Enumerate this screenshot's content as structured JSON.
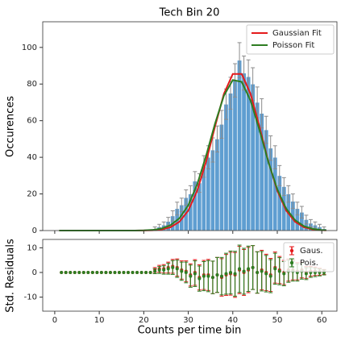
{
  "chart_data": [
    {
      "type": "histogram",
      "title": "Tech Bin 20",
      "ylabel": "Occurences",
      "bins": [
        1,
        2,
        3,
        4,
        5,
        6,
        7,
        8,
        9,
        10,
        11,
        12,
        13,
        14,
        15,
        16,
        17,
        18,
        19,
        20,
        21,
        22,
        23,
        24,
        25,
        26,
        27,
        28,
        29,
        30,
        31,
        32,
        33,
        34,
        35,
        36,
        37,
        38,
        39,
        40,
        41,
        42,
        43,
        44,
        45,
        46,
        47,
        48,
        49,
        50,
        51,
        52,
        53,
        54,
        55,
        56,
        57,
        58,
        59,
        60,
        61
      ],
      "values": [
        0,
        0,
        0,
        0,
        0,
        0,
        0,
        0,
        0,
        0,
        0,
        0,
        0,
        0,
        0,
        0,
        0,
        0,
        0,
        0,
        0,
        1,
        2,
        3,
        5,
        8,
        12,
        14,
        18,
        20,
        27,
        26,
        35,
        40,
        44,
        50,
        58,
        69,
        75,
        82,
        93,
        86,
        84,
        80,
        70,
        64,
        55,
        45,
        40,
        30,
        24,
        20,
        16,
        12,
        10,
        6,
        4,
        3,
        2,
        1
      ],
      "errors": [
        0,
        0,
        0,
        0,
        0,
        0,
        0,
        0,
        0,
        0,
        0,
        0,
        0,
        0,
        0,
        0,
        0,
        0,
        0,
        0,
        0,
        1,
        1.4,
        1.7,
        2.2,
        2.8,
        3.5,
        3.7,
        4.2,
        4.5,
        5.2,
        5.1,
        5.9,
        6.3,
        6.6,
        7.1,
        7.6,
        8.3,
        8.7,
        9.1,
        9.6,
        9.3,
        9.2,
        8.9,
        8.4,
        8,
        7.4,
        6.7,
        6.3,
        5.5,
        4.9,
        4.5,
        4,
        3.5,
        3.2,
        2.4,
        2,
        1.7,
        1.4,
        1
      ],
      "color": "#5f9ed1",
      "error_color": "#8c8c8c",
      "xlim": [
        -2.7,
        63.4
      ],
      "ylim": [
        0,
        114
      ],
      "xticks": [
        0,
        10,
        20,
        30,
        40,
        50,
        60
      ],
      "yticks": [
        0,
        20,
        40,
        60,
        80,
        100
      ],
      "legend": "upper right",
      "series": [
        {
          "name": "Gaussian Fit",
          "color": "#e41a1c",
          "x": [
            1,
            10,
            18,
            20,
            22,
            24,
            26,
            28,
            30,
            32,
            34,
            36,
            38,
            40,
            42,
            44,
            46,
            48,
            50,
            52,
            54,
            56,
            58,
            60,
            61
          ],
          "values": [
            0,
            0,
            0,
            0.05,
            0.18,
            0.61,
            1.8,
            4.8,
            10.9,
            21.7,
            37.6,
            56.7,
            74.6,
            85.5,
            85.5,
            74.6,
            56.7,
            37.6,
            21.7,
            10.9,
            4.8,
            1.8,
            0.6,
            0.2,
            0.1
          ]
        },
        {
          "name": "Poisson Fit",
          "color": "#2e7d22",
          "x": [
            1,
            10,
            18,
            20,
            22,
            24,
            26,
            28,
            30,
            32,
            34,
            36,
            38,
            40,
            42,
            44,
            46,
            48,
            50,
            52,
            54,
            56,
            58,
            60,
            61
          ],
          "values": [
            0,
            0,
            0.01,
            0.11,
            0.36,
            1.08,
            2.9,
            6.7,
            13.8,
            25.2,
            40.8,
            58.3,
            73.6,
            82.2,
            81.2,
            70.9,
            54.8,
            37.4,
            22.6,
            12,
            5.7,
            2.4,
            0.9,
            0.3,
            0.2
          ]
        }
      ]
    },
    {
      "type": "residuals",
      "ylabel": "Std. Residuals",
      "xlabel": "Counts per time bin",
      "xlim": [
        -2.7,
        63.4
      ],
      "ylim": [
        -15.7,
        13.4
      ],
      "xticks": [
        0,
        10,
        20,
        30,
        40,
        50,
        60
      ],
      "yticks": [
        -10,
        0,
        10
      ],
      "legend": "upper right",
      "series": [
        {
          "name": "Gaus.",
          "color": "#e41a1c",
          "values": [
            0,
            0,
            0,
            0,
            0,
            0,
            0,
            0,
            0,
            0,
            0,
            0,
            0,
            0,
            0,
            0,
            0,
            0,
            0,
            0,
            0,
            1,
            1.5,
            1.5,
            2,
            2.5,
            2,
            1,
            0.5,
            -1,
            0,
            -2,
            -1,
            -1,
            -2,
            -1,
            -2,
            -1,
            -0.5,
            -1,
            1,
            0,
            1,
            2,
            0,
            1,
            0,
            -1,
            2,
            1,
            0,
            1,
            1,
            0.5,
            1,
            0,
            0.5,
            0.5,
            0.3,
            0.2
          ],
          "errors": [
            0,
            0,
            0,
            0,
            0,
            0,
            0,
            0,
            0,
            0,
            0,
            0,
            0,
            0,
            0,
            0,
            0,
            0,
            0,
            0,
            0,
            1,
            1.4,
            1.7,
            2.2,
            2.8,
            3.5,
            3.7,
            4.2,
            4.5,
            5.2,
            5.1,
            5.9,
            6.3,
            6.6,
            7.1,
            7.6,
            8.3,
            8.7,
            9.1,
            9.6,
            9.3,
            9.2,
            8.9,
            8.4,
            8,
            7.4,
            6.7,
            6.3,
            5.5,
            4.9,
            4.5,
            4,
            3.5,
            3.2,
            2.4,
            2,
            1.7,
            1.4,
            1
          ]
        },
        {
          "name": "Pois.",
          "color": "#2e7d22",
          "values": [
            0,
            0,
            0,
            0,
            0,
            0,
            0,
            0,
            0,
            0,
            0,
            0,
            0,
            0,
            0,
            0,
            0,
            0,
            0,
            0,
            0,
            0.5,
            1,
            1,
            1.5,
            2,
            1.5,
            0.5,
            0,
            -1.5,
            -0.5,
            -2.5,
            -1.5,
            -1.5,
            -2,
            -1,
            -1.5,
            -0.5,
            0,
            -0.5,
            1.5,
            0.5,
            1.5,
            2,
            0,
            0.5,
            -0.5,
            -1.5,
            1.5,
            0.5,
            -0.5,
            0.5,
            0.5,
            0,
            0.5,
            -0.5,
            0,
            0,
            0,
            0
          ],
          "errors": [
            0,
            0,
            0,
            0,
            0,
            0,
            0,
            0,
            0,
            0,
            0,
            0,
            0,
            0,
            0,
            0,
            0,
            0,
            0,
            0,
            0,
            1,
            1.4,
            1.7,
            2.2,
            2.8,
            3.5,
            3.7,
            4.2,
            4.5,
            5.2,
            5.1,
            5.9,
            6.3,
            6.6,
            7.1,
            7.6,
            8.3,
            8.7,
            9.1,
            9.6,
            9.3,
            9.2,
            8.9,
            8.4,
            8,
            7.4,
            6.7,
            6.3,
            5.5,
            4.9,
            4.5,
            4,
            3.5,
            3.2,
            2.4,
            2,
            1.7,
            1.4,
            1
          ]
        }
      ]
    }
  ]
}
